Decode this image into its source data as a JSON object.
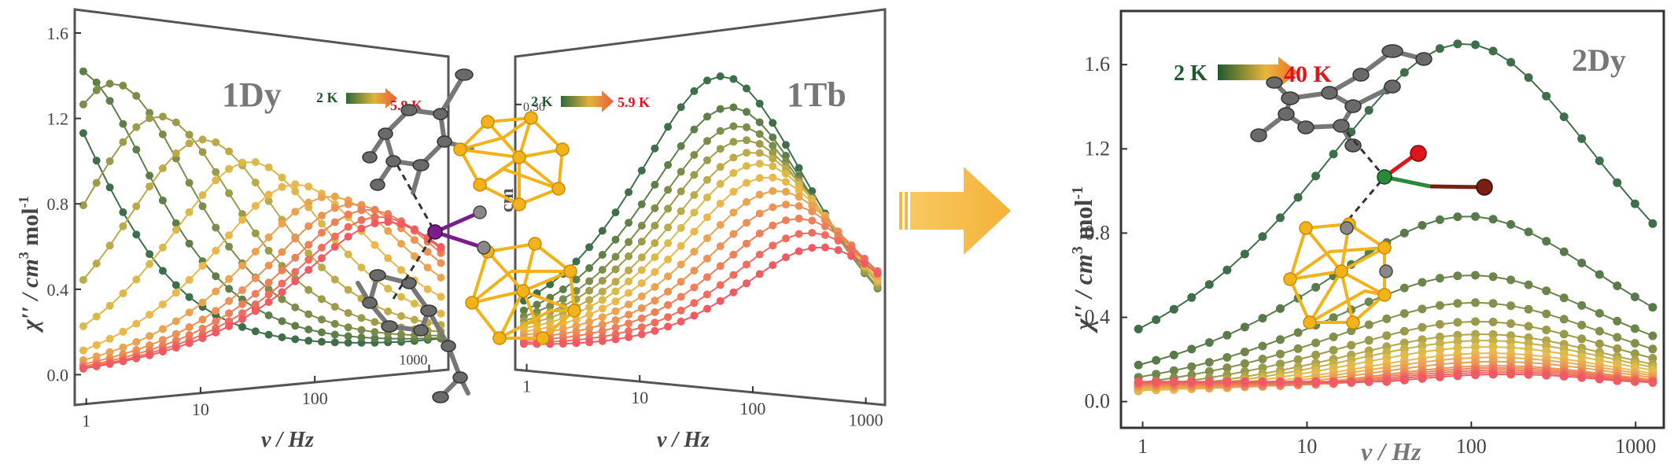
{
  "colors": {
    "cold": "#3f6f4a",
    "warm_mid": "#e8c04a",
    "hot": "#f05a62",
    "arrow_big": "#f4b74a",
    "hot_label": "#e0141c",
    "cold_label": "#1f5a2e",
    "cluster": "#f2b21a"
  },
  "icons": {
    "transition_arrow": "arrow-right-icon",
    "molecule_1": "molecular-structure-icon",
    "molecule_2": "molecular-structure-icon"
  },
  "chart_data": [
    {
      "type": "line",
      "panel": "1Dy",
      "title": "1Dy",
      "xlabel": "ν / Hz",
      "ylabel": "χ′′ / cm3 mol-1",
      "xscale": "log",
      "xlim": [
        0.9,
        1300
      ],
      "ylim": [
        -0.05,
        1.6
      ],
      "yticks": [
        "0.0",
        "0.4",
        "0.8",
        "1.2",
        "1.6"
      ],
      "xticks": [
        "1",
        "10",
        "100",
        "1000"
      ],
      "temperature_labels": {
        "low": "2 K",
        "high": "5.9 K"
      },
      "series_count": 12,
      "peak_positions_hz": [
        0.3,
        0.8,
        1.8,
        4.5,
        11,
        28,
        70,
        140,
        220,
        300,
        370,
        430
      ],
      "peak_heights": [
        1.46,
        1.43,
        1.38,
        1.24,
        1.14,
        1.04,
        0.93,
        0.87,
        0.83,
        0.8,
        0.76,
        0.73
      ],
      "grid": false,
      "legend": "none"
    },
    {
      "type": "line",
      "panel": "1Tb",
      "title": "1Tb",
      "xlabel": "ν / Hz",
      "ylabel": "χ′′ / cm3 mol-1",
      "xscale": "log",
      "xlim": [
        0.9,
        1300
      ],
      "ylim": [
        0,
        0.32
      ],
      "yticks": [
        "0.30"
      ],
      "xticks": [
        "1",
        "10",
        "100",
        "1000"
      ],
      "temperature_labels": {
        "low": "2 K",
        "high": "5.9 K"
      },
      "series_count": 12,
      "peak_positions_hz": [
        50,
        60,
        70,
        80,
        95,
        110,
        130,
        160,
        200,
        250,
        320,
        400
      ],
      "peak_heights": [
        0.305,
        0.272,
        0.252,
        0.237,
        0.224,
        0.212,
        0.198,
        0.184,
        0.17,
        0.156,
        0.142,
        0.128
      ],
      "grid": false,
      "legend": "none"
    },
    {
      "type": "line",
      "panel": "2Dy",
      "title": "2Dy",
      "xlabel": "ν / Hz",
      "ylabel": "χ′′ / cm3 mol-1",
      "xscale": "log",
      "xlim": [
        0.9,
        1300
      ],
      "ylim": [
        -0.05,
        1.78
      ],
      "yticks": [
        "0.0",
        "0.4",
        "0.8",
        "1.2",
        "1.6"
      ],
      "xticks": [
        "1",
        "10",
        "100",
        "1000"
      ],
      "temperature_labels": {
        "low": "2 K",
        "high": "40 K"
      },
      "series_count": 16,
      "peak_positions_hz": [
        90,
        95,
        100,
        105,
        110,
        115,
        120,
        125,
        130,
        135,
        140,
        145,
        150,
        155,
        160,
        165
      ],
      "peak_heights": [
        1.7,
        0.88,
        0.6,
        0.47,
        0.38,
        0.32,
        0.29,
        0.26,
        0.23,
        0.21,
        0.19,
        0.17,
        0.16,
        0.15,
        0.14,
        0.13
      ],
      "grid": false,
      "legend": "none"
    }
  ],
  "labels": {
    "p1_title": "1Dy",
    "p2_title": "1Tb",
    "p3_title": "2Dy",
    "p1_xlabel": "ν / Hz",
    "p2_xlabel": "ν / Hz",
    "p3_xlabel": "ν / Hz",
    "ylabel_main": "χ′′ / cm",
    "ylabel_sup1": "3",
    "ylabel_mid": " mol",
    "ylabel_sup2": "-1",
    "p2_ylabel_fragment": "cm",
    "temp_low": "2 K",
    "temp_high_1": "5.9 K",
    "temp_high_2": "40 K"
  }
}
